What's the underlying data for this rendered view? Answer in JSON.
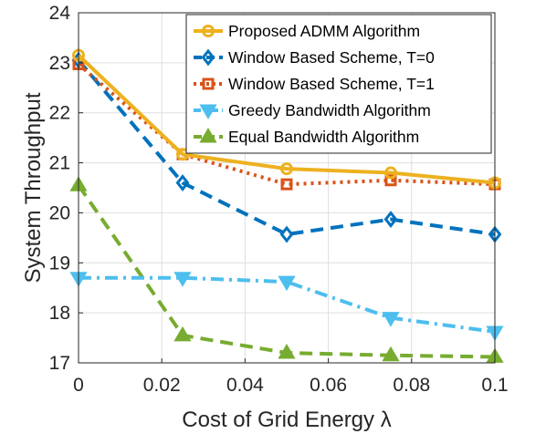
{
  "chart_data": {
    "type": "line",
    "title": "",
    "xlabel": "Cost of Grid Energy λ",
    "ylabel": "System Throughput",
    "xlim": [
      0,
      0.1
    ],
    "ylim": [
      17,
      24
    ],
    "x_ticks": [
      "0",
      "0.02",
      "0.04",
      "0.06",
      "0.08",
      "0.1"
    ],
    "y_ticks": [
      "17",
      "18",
      "19",
      "20",
      "21",
      "22",
      "23",
      "24"
    ],
    "x_tick_values": [
      0,
      0.02,
      0.04,
      0.06,
      0.08,
      0.1
    ],
    "y_tick_values": [
      17,
      18,
      19,
      20,
      21,
      22,
      23,
      24
    ],
    "grid": true,
    "legend_position": "top-right",
    "x": [
      0,
      0.025,
      0.05,
      0.075,
      0.1
    ],
    "series": [
      {
        "name": "Proposed ADMM Algorithm",
        "values": [
          23.15,
          21.17,
          20.88,
          20.8,
          20.6
        ],
        "color": "#EDB120",
        "dash": "solid",
        "marker": "circle"
      },
      {
        "name": "Window Based Scheme, T=0",
        "values": [
          23.05,
          20.6,
          19.57,
          19.87,
          19.57
        ],
        "color": "#0072BD",
        "dash": "dashed",
        "marker": "diamond"
      },
      {
        "name": "Window Based Scheme, T=1",
        "values": [
          22.97,
          21.17,
          20.57,
          20.65,
          20.57
        ],
        "color": "#D95319",
        "dash": "dotted",
        "marker": "square"
      },
      {
        "name": "Greedy Bandwidth Algorithm",
        "values": [
          18.7,
          18.7,
          18.62,
          17.9,
          17.62
        ],
        "color": "#4DBEEE",
        "dash": "dashdot",
        "marker": "triangle-down"
      },
      {
        "name": "Equal Bandwidth Algorithm",
        "values": [
          20.55,
          17.55,
          17.2,
          17.15,
          17.12
        ],
        "color": "#77AC30",
        "dash": "dashed",
        "marker": "triangle-up"
      }
    ]
  }
}
